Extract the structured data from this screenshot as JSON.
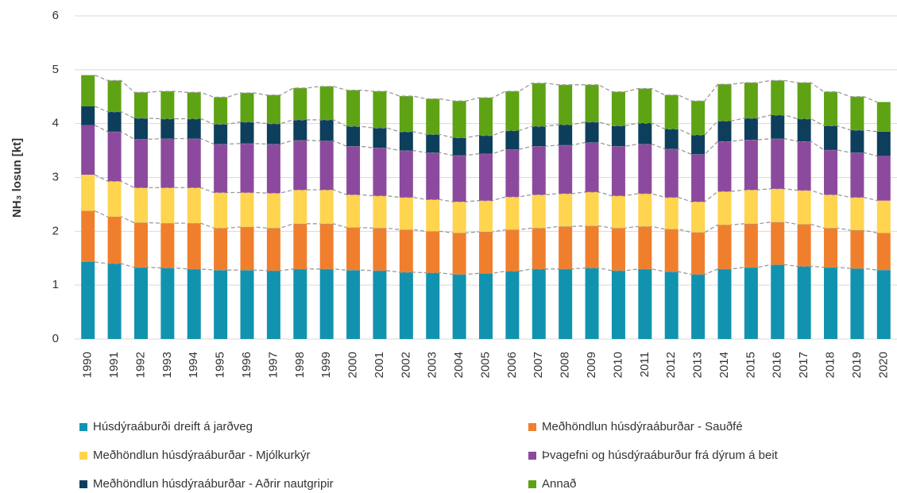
{
  "chart_data": {
    "type": "stacked_bar",
    "y_label": "NH₃ losun [kt]",
    "categories": [
      "1990",
      "1991",
      "1992",
      "1993",
      "1994",
      "1995",
      "1996",
      "1997",
      "1998",
      "1999",
      "2000",
      "2001",
      "2002",
      "2003",
      "2004",
      "2005",
      "2006",
      "2007",
      "2008",
      "2009",
      "2010",
      "2011",
      "2012",
      "2013",
      "2014",
      "2015",
      "2016",
      "2017",
      "2018",
      "2019",
      "2020"
    ],
    "series": [
      {
        "name": "Húsdýraáburði dreift á jarðveg",
        "color": "#1193b0",
        "values": [
          1.43,
          1.4,
          1.33,
          1.32,
          1.3,
          1.28,
          1.28,
          1.27,
          1.3,
          1.3,
          1.28,
          1.27,
          1.24,
          1.23,
          1.2,
          1.22,
          1.26,
          1.3,
          1.3,
          1.32,
          1.27,
          1.3,
          1.25,
          1.2,
          1.3,
          1.33,
          1.38,
          1.35,
          1.33,
          1.31,
          1.28
        ]
      },
      {
        "name": "Meðhöndlun húsdýraáburðar - Sauðfé",
        "color": "#f07f2d",
        "values": [
          0.95,
          0.87,
          0.83,
          0.83,
          0.85,
          0.78,
          0.8,
          0.79,
          0.84,
          0.84,
          0.79,
          0.79,
          0.79,
          0.77,
          0.77,
          0.77,
          0.77,
          0.76,
          0.79,
          0.78,
          0.79,
          0.79,
          0.79,
          0.78,
          0.82,
          0.81,
          0.79,
          0.78,
          0.73,
          0.71,
          0.69
        ]
      },
      {
        "name": "Meðhöndlun húsdýraáburðar - Mjólkurkýr",
        "color": "#ffd44f",
        "values": [
          0.67,
          0.66,
          0.65,
          0.66,
          0.66,
          0.66,
          0.64,
          0.65,
          0.63,
          0.63,
          0.61,
          0.6,
          0.6,
          0.59,
          0.58,
          0.58,
          0.61,
          0.62,
          0.61,
          0.63,
          0.6,
          0.61,
          0.59,
          0.57,
          0.62,
          0.63,
          0.62,
          0.63,
          0.62,
          0.61,
          0.6
        ]
      },
      {
        "name": "Þvagefni og húsdýraáburður frá dýrum á beit",
        "color": "#8c4a9e",
        "values": [
          0.92,
          0.92,
          0.9,
          0.91,
          0.91,
          0.9,
          0.91,
          0.91,
          0.92,
          0.91,
          0.9,
          0.89,
          0.87,
          0.87,
          0.86,
          0.87,
          0.88,
          0.9,
          0.9,
          0.92,
          0.92,
          0.92,
          0.9,
          0.88,
          0.93,
          0.93,
          0.93,
          0.91,
          0.83,
          0.83,
          0.83
        ]
      },
      {
        "name": "Meðhöndlun húsdýraáburðar - Aðrir nautgripir",
        "color": "#0d3f5c",
        "values": [
          0.35,
          0.37,
          0.39,
          0.37,
          0.37,
          0.37,
          0.4,
          0.38,
          0.38,
          0.39,
          0.37,
          0.37,
          0.35,
          0.34,
          0.33,
          0.34,
          0.35,
          0.37,
          0.38,
          0.38,
          0.38,
          0.39,
          0.37,
          0.36,
          0.38,
          0.4,
          0.44,
          0.42,
          0.45,
          0.42,
          0.45
        ]
      },
      {
        "name": "Annað",
        "color": "#5ea314",
        "values": [
          0.58,
          0.58,
          0.48,
          0.51,
          0.49,
          0.5,
          0.54,
          0.53,
          0.59,
          0.62,
          0.67,
          0.68,
          0.66,
          0.66,
          0.68,
          0.7,
          0.73,
          0.8,
          0.74,
          0.69,
          0.63,
          0.64,
          0.63,
          0.63,
          0.68,
          0.66,
          0.64,
          0.67,
          0.63,
          0.62,
          0.55
        ]
      }
    ],
    "ylim": [
      0,
      6
    ],
    "yticks": [
      0,
      1,
      2,
      3,
      4,
      5,
      6
    ],
    "grid": true
  }
}
